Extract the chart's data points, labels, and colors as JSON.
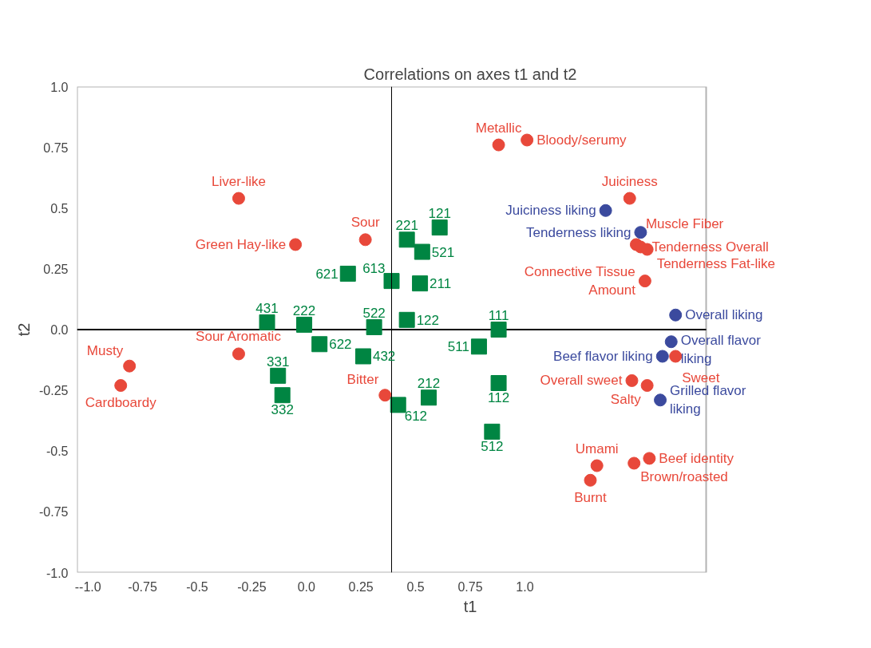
{
  "chart_data": {
    "type": "scatter",
    "title": "Correlations on axes t1 and t2",
    "xlabel": "t1",
    "ylabel": "t2",
    "xlim": [
      -1.05,
      1.83
    ],
    "ylim": [
      -1,
      1
    ],
    "xticks": [
      {
        "value": -1,
        "label": "--1.0"
      },
      -0.75,
      -0.5,
      -0.25,
      {
        "value": 0,
        "label": "0.0"
      },
      0.25,
      0.5,
      0.75,
      {
        "value": 1,
        "label": "1.0"
      }
    ],
    "yticks": [
      {
        "value": -1,
        "label": "-1.0"
      },
      -0.75,
      -0.5,
      -0.25,
      {
        "value": 0,
        "label": "0.0"
      },
      0.25,
      0.5,
      0.75,
      {
        "value": 1,
        "label": "1.0"
      }
    ],
    "grid": false,
    "ref_lines": [
      {
        "axis": "x",
        "value": 0.39,
        "color": "#000000"
      },
      {
        "axis": "y",
        "value": 0,
        "color": "#000000"
      }
    ],
    "series": [
      {
        "color": "#e8483a",
        "marker": "circle",
        "x": [
          -0.81,
          -0.85,
          -0.31,
          -0.05,
          0.27,
          -0.31,
          0.36,
          0.88,
          1.01,
          1.48,
          1.51,
          1.53,
          1.56,
          1.55,
          1.69,
          1.49,
          1.56,
          1.33,
          1.3,
          1.5,
          1.57
        ],
        "values": [
          -0.15,
          -0.23,
          0.54,
          0.35,
          0.37,
          -0.1,
          -0.27,
          0.76,
          0.78,
          0.54,
          0.35,
          0.34,
          0.33,
          0.2,
          -0.11,
          -0.21,
          -0.23,
          -0.56,
          -0.62,
          -0.55,
          -0.53
        ]
      },
      {
        "color": "#3b4a9e",
        "marker": "circle",
        "x": [
          1.37,
          1.53,
          1.69,
          1.67,
          1.63,
          1.62
        ],
        "values": [
          0.49,
          0.4,
          0.06,
          -0.05,
          -0.11,
          -0.29
        ]
      },
      {
        "color": "#008542",
        "marker": "square",
        "x": [
          0.61,
          0.46,
          0.53,
          0.39,
          0.52,
          0.19,
          0.31,
          0.46,
          0.88,
          0.79,
          0.88,
          0.56,
          0.42,
          0.85,
          -0.18,
          -0.01,
          0.06,
          0.26,
          -0.13,
          -0.11
        ],
        "values": [
          0.42,
          0.37,
          0.32,
          0.2,
          0.19,
          0.23,
          0.01,
          0.04,
          0.0,
          -0.07,
          -0.22,
          -0.28,
          -0.31,
          -0.42,
          0.03,
          0.02,
          -0.06,
          -0.11,
          -0.19,
          -0.27
        ]
      }
    ],
    "annotations": [
      {
        "text": "Musty",
        "x": -0.81,
        "y": -0.15
      },
      {
        "text": "Cardboardy",
        "x": -0.85,
        "y": -0.23
      },
      {
        "text": "Liver-like",
        "x": -0.31,
        "y": 0.54
      },
      {
        "text": "Green Hay-like",
        "x": -0.05,
        "y": 0.35
      },
      {
        "text": "Sour",
        "x": 0.27,
        "y": 0.37
      },
      {
        "text": "Sour Aromatic",
        "x": -0.31,
        "y": -0.1
      },
      {
        "text": "Bitter",
        "x": 0.36,
        "y": -0.27
      },
      {
        "text": "Metallic",
        "x": 0.88,
        "y": 0.76
      },
      {
        "text": "Bloody/serumy",
        "x": 1.01,
        "y": 0.78
      },
      {
        "text": "Juiciness",
        "x": 1.48,
        "y": 0.54
      },
      {
        "text": "Muscle Fiber",
        "x": 1.51,
        "y": 0.35
      },
      {
        "text": "Tenderness Overall",
        "x": 1.53,
        "y": 0.34
      },
      {
        "text": "Tenderness Fat-like",
        "x": 1.56,
        "y": 0.33
      },
      {
        "text": "Connective Tissue Amount",
        "x": 1.55,
        "y": 0.2
      },
      {
        "text": "Sweet",
        "x": 1.69,
        "y": -0.11
      },
      {
        "text": "Overall sweet",
        "x": 1.49,
        "y": -0.21
      },
      {
        "text": "Salty",
        "x": 1.56,
        "y": -0.23
      },
      {
        "text": "Umami",
        "x": 1.33,
        "y": -0.56
      },
      {
        "text": "Burnt",
        "x": 1.3,
        "y": -0.62
      },
      {
        "text": "Brown/roasted",
        "x": 1.5,
        "y": -0.55
      },
      {
        "text": "Beef identity",
        "x": 1.57,
        "y": -0.53
      },
      {
        "text": "Juiciness liking",
        "x": 1.37,
        "y": 0.49
      },
      {
        "text": "Tenderness liking",
        "x": 1.53,
        "y": 0.4
      },
      {
        "text": "Overall liking",
        "x": 1.69,
        "y": 0.06
      },
      {
        "text": "Overall flavor liking",
        "x": 1.67,
        "y": -0.05
      },
      {
        "text": "Beef flavor liking",
        "x": 1.63,
        "y": -0.11
      },
      {
        "text": "Grilled flavor liking",
        "x": 1.62,
        "y": -0.29
      },
      {
        "text": "121",
        "x": 0.61,
        "y": 0.42
      },
      {
        "text": "221",
        "x": 0.46,
        "y": 0.37
      },
      {
        "text": "521",
        "x": 0.53,
        "y": 0.32
      },
      {
        "text": "613",
        "x": 0.39,
        "y": 0.2
      },
      {
        "text": "211",
        "x": 0.52,
        "y": 0.19
      },
      {
        "text": "621",
        "x": 0.19,
        "y": 0.23
      },
      {
        "text": "522",
        "x": 0.31,
        "y": 0.01
      },
      {
        "text": "122",
        "x": 0.46,
        "y": 0.04
      },
      {
        "text": "111",
        "x": 0.88,
        "y": 0.0
      },
      {
        "text": "511",
        "x": 0.79,
        "y": -0.07
      },
      {
        "text": "112",
        "x": 0.88,
        "y": -0.22
      },
      {
        "text": "212",
        "x": 0.56,
        "y": -0.28
      },
      {
        "text": "612",
        "x": 0.42,
        "y": -0.31
      },
      {
        "text": "512",
        "x": 0.85,
        "y": -0.42
      },
      {
        "text": "431",
        "x": -0.18,
        "y": 0.03
      },
      {
        "text": "222",
        "x": -0.01,
        "y": 0.02
      },
      {
        "text": "622",
        "x": 0.06,
        "y": -0.06
      },
      {
        "text": "432",
        "x": 0.26,
        "y": -0.11
      },
      {
        "text": "331",
        "x": -0.13,
        "y": -0.19
      },
      {
        "text": "332",
        "x": -0.11,
        "y": -0.27
      }
    ]
  }
}
